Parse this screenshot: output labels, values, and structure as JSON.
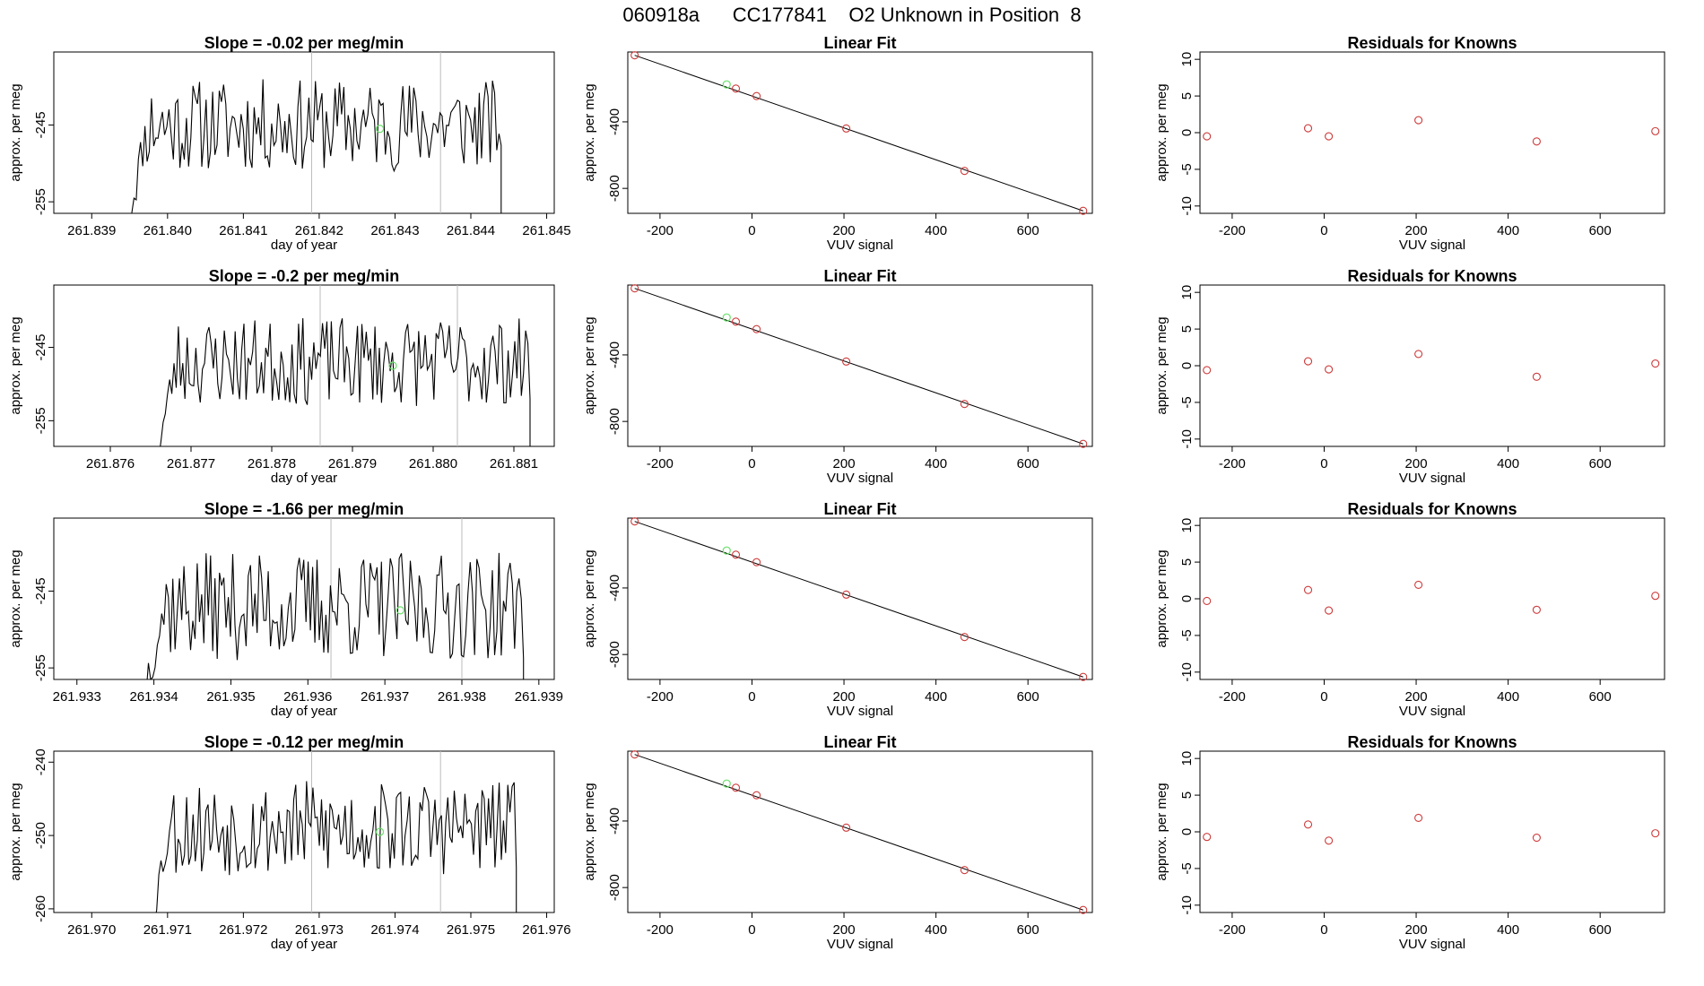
{
  "figure": {
    "title": "060918a      CC177841    O2 Unknown in Position  8"
  },
  "chart_data": [
    {
      "type": "line",
      "panel": "timeseries",
      "row": 1,
      "title": "Slope =  -0.02  per meg/min",
      "xlabel": "day of year",
      "ylabel": "approx. per meg",
      "xlim": [
        261.8385,
        261.8451
      ],
      "ylim": [
        -256.5,
        -235.5
      ],
      "xticks": [
        "261.839",
        "261.840",
        "261.841",
        "261.842",
        "261.843",
        "261.844",
        "261.845"
      ],
      "yticks": [
        "-245",
        "-255"
      ],
      "vlines": [
        261.8419,
        261.8436
      ],
      "marker": {
        "x": 261.8428,
        "y": -245.5,
        "color": "#6be06b"
      },
      "series": [
        {
          "x_start": 261.8395,
          "x_end": 261.8444,
          "y_base": -245.0,
          "amplitude": 6.0,
          "seed": 11
        }
      ]
    },
    {
      "type": "scatter",
      "panel": "fit",
      "row": 1,
      "title": "Linear Fit",
      "xlabel": "VUV signal",
      "ylabel": "approx. per meg",
      "xlim": [
        -270,
        740
      ],
      "ylim": [
        -950,
        20
      ],
      "xticks": [
        "-200",
        "0",
        "200",
        "400",
        "600"
      ],
      "yticks": [
        "-400",
        "-800"
      ],
      "line": [
        [
          -255,
          0
        ],
        [
          720,
          -935
        ]
      ],
      "points": [
        [
          -255,
          0
        ],
        [
          -35,
          -200
        ],
        [
          10,
          -245
        ],
        [
          205,
          -440
        ],
        [
          462,
          -695
        ],
        [
          720,
          -935
        ]
      ],
      "highlight": [
        -55,
        -175
      ]
    },
    {
      "type": "scatter",
      "panel": "residuals",
      "row": 1,
      "title": "Residuals for Knowns",
      "xlabel": "VUV signal",
      "ylabel": "approx. per meg",
      "xlim": [
        -270,
        740
      ],
      "ylim": [
        -11,
        11
      ],
      "xticks": [
        "-200",
        "0",
        "200",
        "400",
        "600"
      ],
      "yticks": [
        "10",
        "5",
        "0",
        "-5",
        "-10"
      ],
      "points": [
        [
          -255,
          -0.5
        ],
        [
          -35,
          0.6
        ],
        [
          10,
          -0.5
        ],
        [
          205,
          1.7
        ],
        [
          462,
          -1.2
        ],
        [
          720,
          0.2
        ]
      ]
    },
    {
      "type": "line",
      "panel": "timeseries",
      "row": 2,
      "title": "Slope =  -0.2  per meg/min",
      "xlabel": "day of year",
      "ylabel": "approx. per meg",
      "xlim": [
        261.8753,
        261.8815
      ],
      "ylim": [
        -258.5,
        -236.5
      ],
      "xticks": [
        "261.876",
        "261.877",
        "261.878",
        "261.879",
        "261.880",
        "261.881"
      ],
      "yticks": [
        "-245",
        "-255"
      ],
      "vlines": [
        261.8786,
        261.8803
      ],
      "marker": {
        "x": 261.8795,
        "y": -247.5,
        "color": "#6be06b"
      },
      "series": [
        {
          "x_start": 261.8766,
          "x_end": 261.8812,
          "y_base": -247.0,
          "amplitude": 6.0,
          "seed": 23
        }
      ]
    },
    {
      "type": "scatter",
      "panel": "fit",
      "row": 2,
      "title": "Linear Fit",
      "xlabel": "VUV signal",
      "ylabel": "approx. per meg",
      "xlim": [
        -270,
        740
      ],
      "ylim": [
        -950,
        20
      ],
      "xticks": [
        "-200",
        "0",
        "200",
        "400",
        "600"
      ],
      "yticks": [
        "-400",
        "-800"
      ],
      "line": [
        [
          -255,
          0
        ],
        [
          720,
          -935
        ]
      ],
      "points": [
        [
          -255,
          0
        ],
        [
          -35,
          -200
        ],
        [
          10,
          -245
        ],
        [
          205,
          -440
        ],
        [
          462,
          -695
        ],
        [
          720,
          -935
        ]
      ],
      "highlight": [
        -55,
        -175
      ]
    },
    {
      "type": "scatter",
      "panel": "residuals",
      "row": 2,
      "title": "Residuals for Knowns",
      "xlabel": "VUV signal",
      "ylabel": "approx. per meg",
      "xlim": [
        -270,
        740
      ],
      "ylim": [
        -11,
        11
      ],
      "xticks": [
        "-200",
        "0",
        "200",
        "400",
        "600"
      ],
      "yticks": [
        "10",
        "5",
        "0",
        "-5",
        "-10"
      ],
      "points": [
        [
          -255,
          -0.6
        ],
        [
          -35,
          0.6
        ],
        [
          10,
          -0.5
        ],
        [
          205,
          1.6
        ],
        [
          462,
          -1.5
        ],
        [
          720,
          0.3
        ]
      ]
    },
    {
      "type": "line",
      "panel": "timeseries",
      "row": 3,
      "title": "Slope =  -1.66  per meg/min",
      "xlabel": "day of year",
      "ylabel": "approx. per meg",
      "xlim": [
        261.9327,
        261.9392
      ],
      "ylim": [
        -256.5,
        -235.5
      ],
      "xticks": [
        "261.933",
        "261.934",
        "261.935",
        "261.936",
        "261.937",
        "261.938",
        "261.939"
      ],
      "yticks": [
        "-245",
        "-255"
      ],
      "vlines": [
        261.9363,
        261.938
      ],
      "marker": {
        "x": 261.9372,
        "y": -247.5,
        "color": "#6be06b"
      },
      "series": [
        {
          "x_start": 261.9339,
          "x_end": 261.9388,
          "y_base": -247.0,
          "amplitude": 7.0,
          "seed": 37
        }
      ]
    },
    {
      "type": "scatter",
      "panel": "fit",
      "row": 3,
      "title": "Linear Fit",
      "xlabel": "VUV signal",
      "ylabel": "approx. per meg",
      "xlim": [
        -270,
        740
      ],
      "ylim": [
        -950,
        20
      ],
      "xticks": [
        "-200",
        "0",
        "200",
        "400",
        "600"
      ],
      "yticks": [
        "-400",
        "-800"
      ],
      "line": [
        [
          -255,
          0
        ],
        [
          720,
          -935
        ]
      ],
      "points": [
        [
          -255,
          0
        ],
        [
          -35,
          -200
        ],
        [
          10,
          -245
        ],
        [
          205,
          -440
        ],
        [
          462,
          -695
        ],
        [
          720,
          -935
        ]
      ],
      "highlight": [
        -55,
        -175
      ]
    },
    {
      "type": "scatter",
      "panel": "residuals",
      "row": 3,
      "title": "Residuals for Knowns",
      "xlabel": "VUV signal",
      "ylabel": "approx. per meg",
      "xlim": [
        -270,
        740
      ],
      "ylim": [
        -11,
        11
      ],
      "xticks": [
        "-200",
        "0",
        "200",
        "400",
        "600"
      ],
      "yticks": [
        "10",
        "5",
        "0",
        "-5",
        "-10"
      ],
      "points": [
        [
          -255,
          -0.3
        ],
        [
          -35,
          1.2
        ],
        [
          10,
          -1.6
        ],
        [
          205,
          1.9
        ],
        [
          462,
          -1.5
        ],
        [
          720,
          0.4
        ]
      ]
    },
    {
      "type": "line",
      "panel": "timeseries",
      "row": 4,
      "title": "Slope =  -0.12  per meg/min",
      "xlabel": "day of year",
      "ylabel": "approx. per meg",
      "xlim": [
        261.9695,
        261.9761
      ],
      "ylim": [
        -260.5,
        -238.5
      ],
      "xticks": [
        "261.970",
        "261.971",
        "261.972",
        "261.973",
        "261.974",
        "261.975",
        "261.976"
      ],
      "yticks": [
        "-240",
        "-250",
        "-260"
      ],
      "vlines": [
        261.9729,
        261.9746
      ],
      "marker": {
        "x": 261.9738,
        "y": -249.5,
        "color": "#6be06b"
      },
      "series": [
        {
          "x_start": 261.9708,
          "x_end": 261.9756,
          "y_base": -249.0,
          "amplitude": 6.5,
          "seed": 53
        }
      ]
    },
    {
      "type": "scatter",
      "panel": "fit",
      "row": 4,
      "title": "Linear Fit",
      "xlabel": "VUV signal",
      "ylabel": "approx. per meg",
      "xlim": [
        -270,
        740
      ],
      "ylim": [
        -950,
        20
      ],
      "xticks": [
        "-200",
        "0",
        "200",
        "400",
        "600"
      ],
      "yticks": [
        "-400",
        "-800"
      ],
      "line": [
        [
          -255,
          0
        ],
        [
          720,
          -935
        ]
      ],
      "points": [
        [
          -255,
          0
        ],
        [
          -35,
          -200
        ],
        [
          10,
          -245
        ],
        [
          205,
          -440
        ],
        [
          462,
          -695
        ],
        [
          720,
          -935
        ]
      ],
      "highlight": [
        -55,
        -175
      ]
    },
    {
      "type": "scatter",
      "panel": "residuals",
      "row": 4,
      "title": "Residuals for Knowns",
      "xlabel": "VUV signal",
      "ylabel": "approx. per meg",
      "xlim": [
        -270,
        740
      ],
      "ylim": [
        -11,
        11
      ],
      "xticks": [
        "-200",
        "0",
        "200",
        "400",
        "600"
      ],
      "yticks": [
        "10",
        "5",
        "0",
        "-5",
        "-10"
      ],
      "points": [
        [
          -255,
          -0.7
        ],
        [
          -35,
          1.0
        ],
        [
          10,
          -1.2
        ],
        [
          205,
          1.9
        ],
        [
          462,
          -0.8
        ],
        [
          720,
          -0.2
        ]
      ]
    }
  ],
  "colors": {
    "line": "#000000",
    "point": "#cd3a3a",
    "highlight": "#6be06b",
    "vline": "#bbbbbb"
  }
}
